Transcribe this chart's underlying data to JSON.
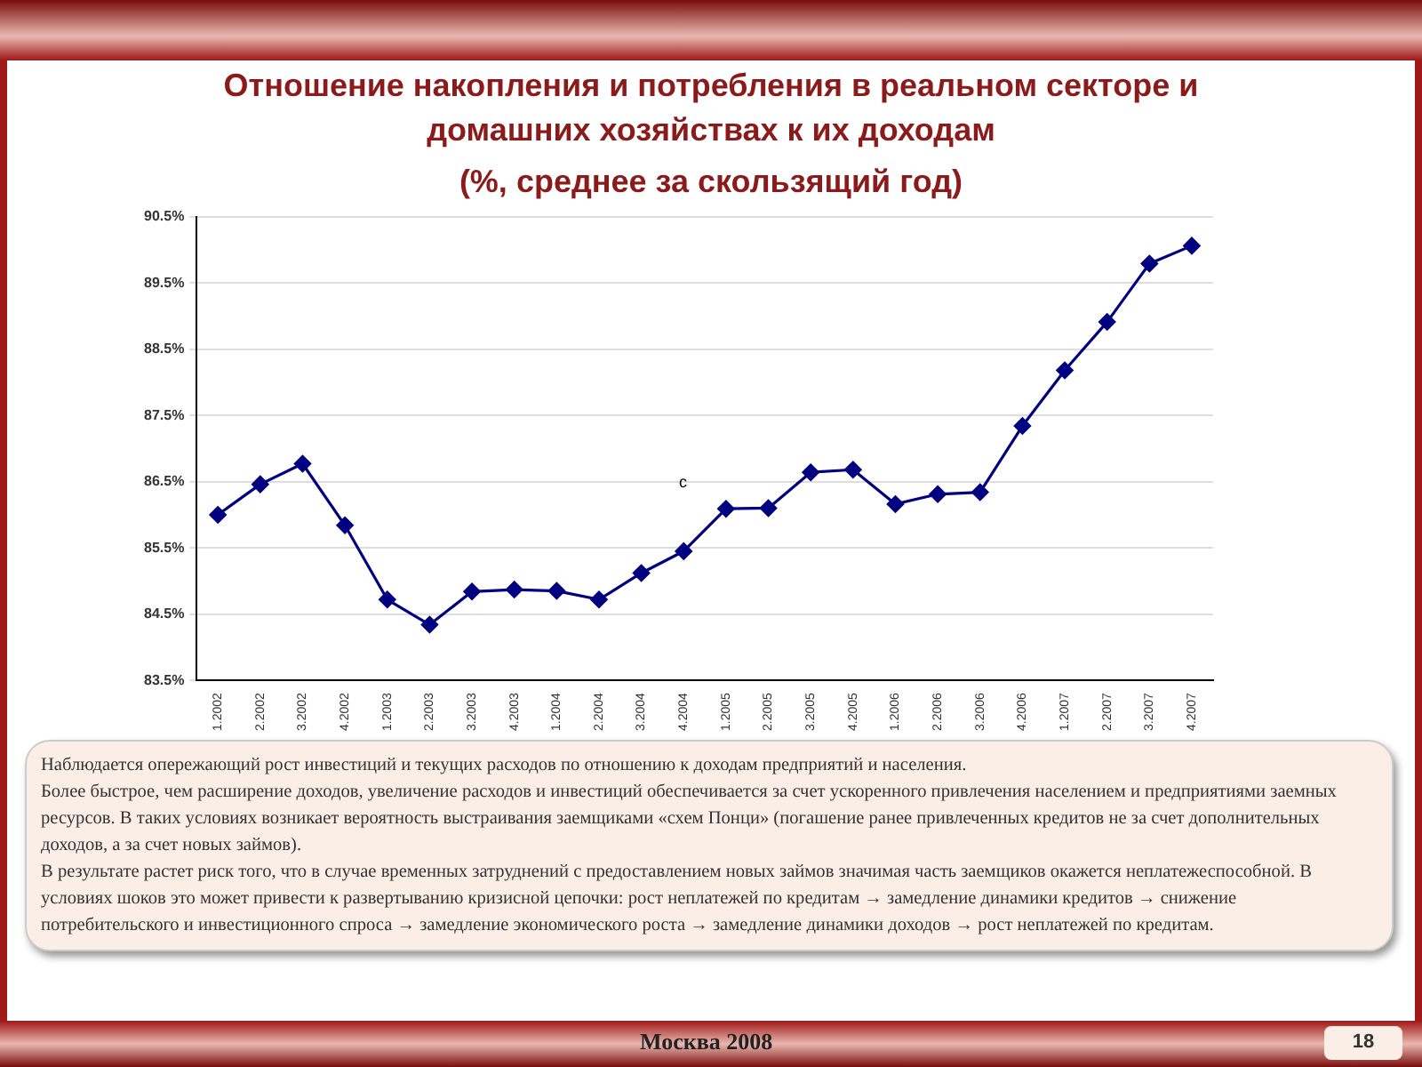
{
  "chart_data": {
    "type": "line",
    "title": "Отношение накопления и потребления в реальном секторе и домашних хозяйствах к их доходам",
    "subtitle": "(%, среднее за скользящий год)",
    "categories": [
      "1.2002",
      "2.2002",
      "3.2002",
      "4.2002",
      "1.2003",
      "2.2003",
      "3.2003",
      "4.2003",
      "1.2004",
      "2.2004",
      "3.2004",
      "4.2004",
      "1.2005",
      "2.2005",
      "3.2005",
      "4.2005",
      "1.2006",
      "2.2006",
      "3.2006",
      "4.2006",
      "1.2007",
      "2.2007",
      "3.2007",
      "4.2007"
    ],
    "series": [
      {
        "color": "#000080",
        "values": [
          86.0,
          86.46,
          86.77,
          85.84,
          84.72,
          84.34,
          84.84,
          84.87,
          84.85,
          84.72,
          85.12,
          85.45,
          86.09,
          86.1,
          86.64,
          86.68,
          86.16,
          86.31,
          86.34,
          87.34,
          88.18,
          88.91,
          89.79,
          90.06
        ]
      }
    ],
    "ylim": [
      83.5,
      90.5
    ],
    "yticks": [
      {
        "value": 83.5,
        "label": "83.5%"
      },
      {
        "value": 84.5,
        "label": "84.5%"
      },
      {
        "value": 85.5,
        "label": "85.5%"
      },
      {
        "value": 86.5,
        "label": "86.5%"
      },
      {
        "value": 87.5,
        "label": "87.5%"
      },
      {
        "value": 88.5,
        "label": "88.5%"
      },
      {
        "value": 89.5,
        "label": "89.5%"
      },
      {
        "value": 90.5,
        "label": "90.5%"
      }
    ],
    "grid": "y",
    "legend": false,
    "marker": "diamond",
    "line_style": "solid",
    "annotations": [
      "c",
      "Наблюдается опережающий рост инвестиций и текущих расходов по отношению к доходам предприятий и населения.",
      "Более быстрое, чем расширение доходов, увеличение расходов и инвестиций обеспечивается за счет ускоренного привлечения населением и предприятиями  заемных ресурсов. В таких условиях возникает вероятность выстраивания заемщиками «схем Понци» (погашение  ранее привлеченных кредитов не за счет дополнительных доходов, а за счет новых займов).",
      "В результате растет риск того, что в случае временных затруднений с предоставлением новых займов значимая часть заемщиков окажется неплатежеспособной. В условиях шоков это может привести к развертыванию кризисной цепочки: рост неплатежей по кредитам → замедление динамики кредитов → снижение потребительского и инвестиционного спроса → замедление экономического роста → замедление динамики доходов  → рост неплатежей по кредитам.",
      "Москва 2008",
      "18"
    ]
  }
}
